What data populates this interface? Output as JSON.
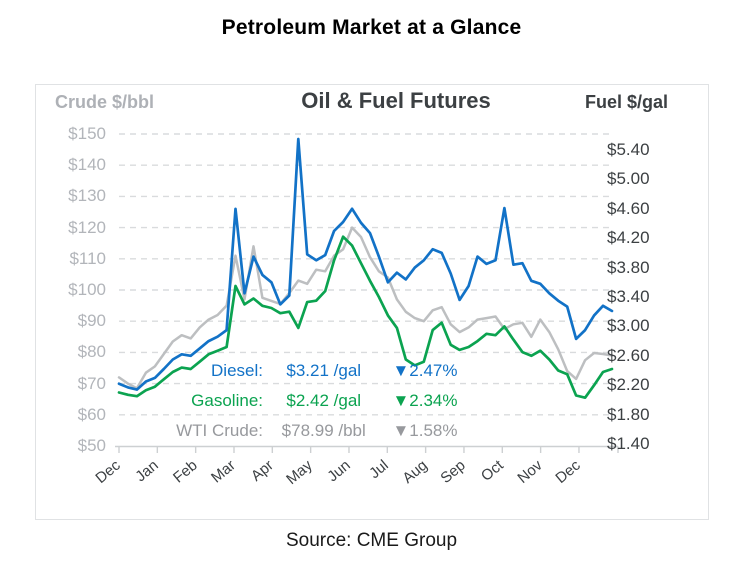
{
  "title": "Petroleum Market at a Glance",
  "source": "Source: CME Group",
  "panel": {
    "left_axis_title": "Crude $/bbl",
    "chart_title": "Oil & Fuel Futures",
    "right_axis_title": "Fuel $/gal"
  },
  "legend": [
    {
      "label": "Diesel:",
      "value": "$3.21 /gal",
      "change": "▼2.47%",
      "color": "#1272c7"
    },
    {
      "label": "Gasoline:",
      "value": "$2.42 /gal",
      "change": "▼2.34%",
      "color": "#0ba350"
    },
    {
      "label": "WTI Crude:",
      "value": "$78.99 /bbl",
      "change": "▼1.58%",
      "color": "#97999d"
    }
  ],
  "chart_data": {
    "type": "line",
    "title": "Oil & Fuel Futures",
    "x_tick_labels": [
      "Dec",
      "Jan",
      "Feb",
      "Mar",
      "Apr",
      "May",
      "Jun",
      "Jul",
      "Aug",
      "Sep",
      "Oct",
      "Nov",
      "Dec"
    ],
    "left_axis": {
      "title": "Crude $/bbl",
      "range": [
        50,
        150
      ],
      "ticks": [
        {
          "label": "$150",
          "value": 150
        },
        {
          "label": "$140",
          "value": 140
        },
        {
          "label": "$130",
          "value": 130
        },
        {
          "label": "$120",
          "value": 120
        },
        {
          "label": "$110",
          "value": 110
        },
        {
          "label": "$100",
          "value": 100
        },
        {
          "label": "$90",
          "value": 90
        },
        {
          "label": "$80",
          "value": 80
        },
        {
          "label": "$70",
          "value": 70
        },
        {
          "label": "$60",
          "value": 60
        },
        {
          "label": "$50",
          "value": 50
        }
      ]
    },
    "right_axis": {
      "title": "Fuel $/gal",
      "range": [
        1.4,
        5.4
      ],
      "ticks": [
        {
          "label": "$5.40",
          "value": 5.4
        },
        {
          "label": "$5.00",
          "value": 5.0
        },
        {
          "label": "$4.60",
          "value": 4.6
        },
        {
          "label": "$4.20",
          "value": 4.2
        },
        {
          "label": "$3.80",
          "value": 3.8
        },
        {
          "label": "$3.40",
          "value": 3.4
        },
        {
          "label": "$3.00",
          "value": 3.0
        },
        {
          "label": "$2.60",
          "value": 2.6
        },
        {
          "label": "$2.20",
          "value": 2.2
        },
        {
          "label": "$1.80",
          "value": 1.8
        },
        {
          "label": "$1.40",
          "value": 1.4
        }
      ]
    },
    "grid": "horizontal-dashed",
    "legend_position": "inside-lower-left",
    "series": [
      {
        "name": "WTI Crude",
        "unit": "$/bbl",
        "axis": "left",
        "color": "#bdbfc1",
        "current": 78.99,
        "change_pct": -1.58,
        "values": [
          72,
          70,
          68.5,
          73.5,
          75.5,
          79.5,
          83.5,
          85.5,
          84.5,
          88,
          90.5,
          92,
          95,
          111,
          97,
          114,
          97.5,
          96.5,
          95.5,
          99,
          103,
          102,
          106.5,
          106,
          111,
          113,
          120,
          117,
          110.5,
          106,
          104,
          97,
          93,
          91,
          90,
          93.5,
          94.5,
          89,
          86.5,
          88,
          90.5,
          91,
          91.5,
          87.5,
          89,
          89.5,
          85,
          90.5,
          86.5,
          81,
          74,
          71.5,
          77.5,
          79.8,
          79.5,
          79
        ]
      },
      {
        "name": "Gasoline",
        "unit": "$/gal",
        "axis": "right",
        "color": "#0ba350",
        "current": 2.42,
        "change_pct": -2.34,
        "values": [
          2.1,
          2.07,
          2.05,
          2.13,
          2.18,
          2.28,
          2.38,
          2.44,
          2.42,
          2.52,
          2.62,
          2.67,
          2.72,
          3.55,
          3.3,
          3.38,
          3.28,
          3.25,
          3.18,
          3.2,
          2.98,
          3.33,
          3.35,
          3.48,
          3.9,
          4.22,
          4.1,
          3.86,
          3.62,
          3.4,
          3.15,
          2.98,
          2.55,
          2.47,
          2.52,
          2.95,
          3.05,
          2.75,
          2.68,
          2.72,
          2.8,
          2.9,
          2.88,
          3.0,
          2.82,
          2.65,
          2.6,
          2.67,
          2.55,
          2.4,
          2.35,
          2.06,
          2.03,
          2.2,
          2.38,
          2.42
        ]
      },
      {
        "name": "Diesel",
        "unit": "$/gal",
        "axis": "right",
        "color": "#1272c7",
        "current": 3.21,
        "change_pct": -2.47,
        "values": [
          2.22,
          2.17,
          2.14,
          2.25,
          2.3,
          2.42,
          2.55,
          2.62,
          2.6,
          2.7,
          2.8,
          2.86,
          2.95,
          4.6,
          3.45,
          3.95,
          3.7,
          3.6,
          3.3,
          3.42,
          5.55,
          3.98,
          3.9,
          3.97,
          4.3,
          4.42,
          4.6,
          4.41,
          4.27,
          3.95,
          3.6,
          3.73,
          3.64,
          3.8,
          3.9,
          4.05,
          4.0,
          3.72,
          3.36,
          3.55,
          3.95,
          3.85,
          3.9,
          4.61,
          3.84,
          3.86,
          3.62,
          3.58,
          3.45,
          3.35,
          3.27,
          2.83,
          2.95,
          3.15,
          3.28,
          3.21
        ]
      }
    ]
  }
}
